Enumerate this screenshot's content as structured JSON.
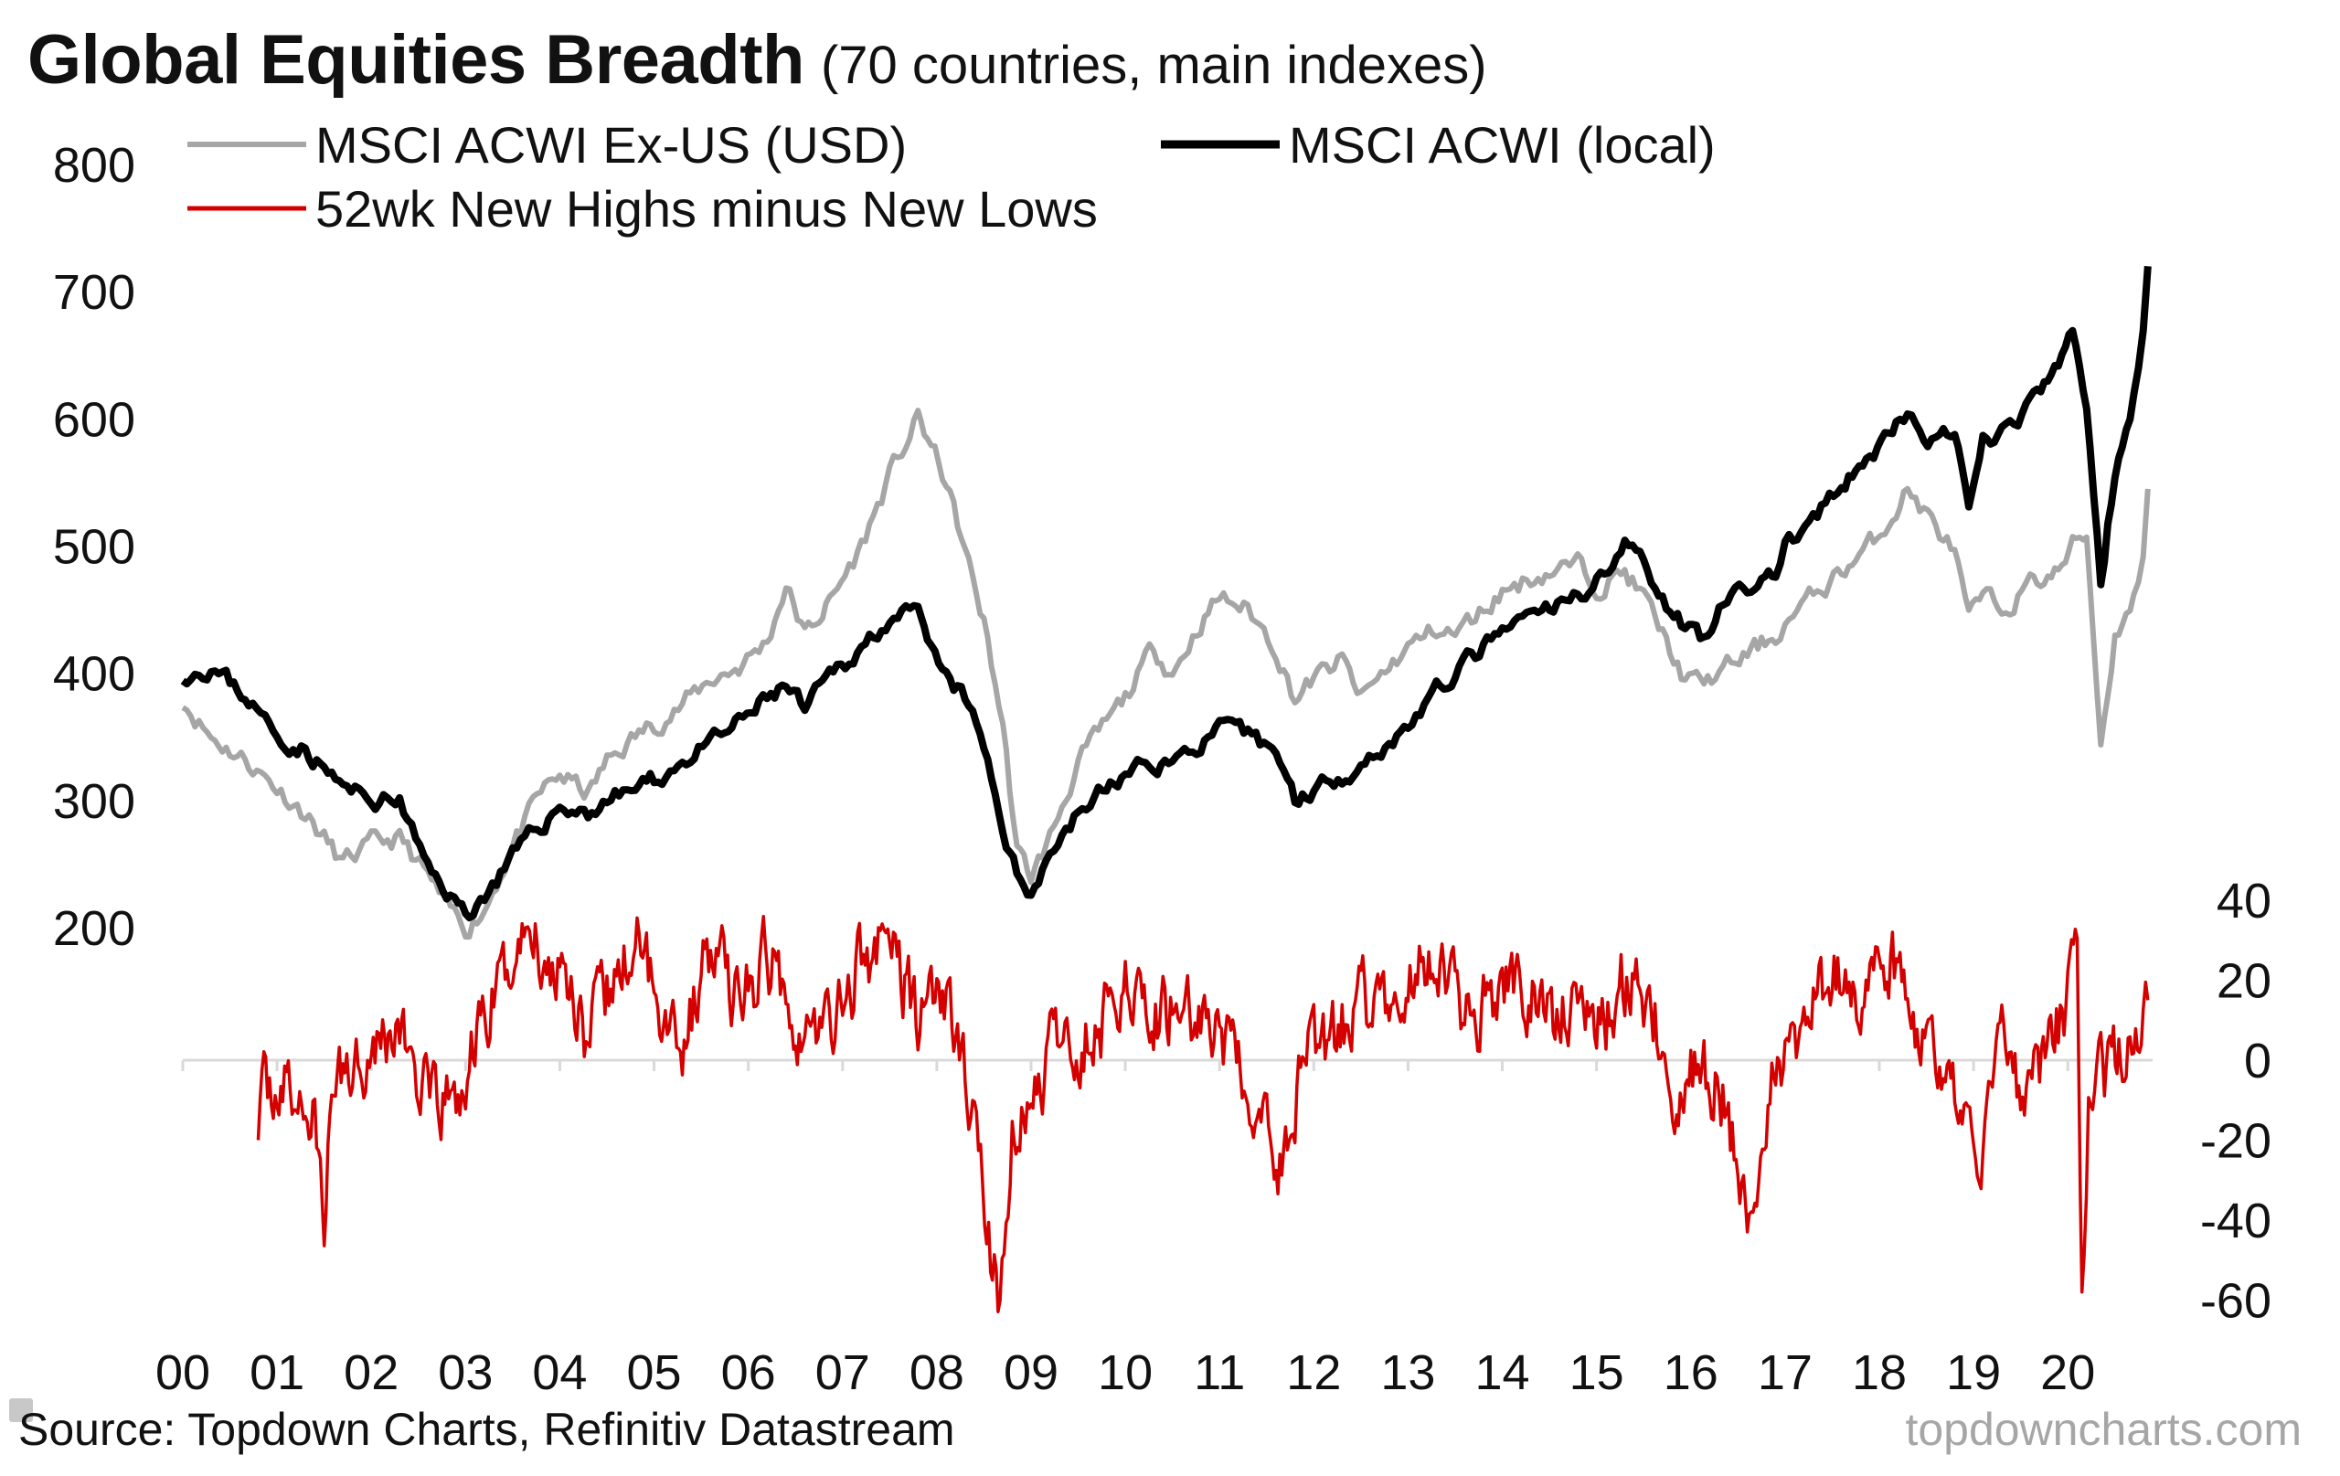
{
  "title": "Global Equities Breadth",
  "subtitle": "(70 countries, main indexes)",
  "source": "Source: Topdown Charts, Refinitiv Datastream",
  "watermark": "topdowncharts.com",
  "colors": {
    "acwi_exus": "#a6a6a6",
    "acwi_local": "#000000",
    "breadth": "#d40000",
    "zero_line": "#d9d9d9"
  },
  "chart_data": {
    "type": "line",
    "title": "Global Equities Breadth",
    "subtitle": "(70 countries, main indexes)",
    "x_tick_labels": [
      "00",
      "01",
      "02",
      "03",
      "04",
      "05",
      "06",
      "07",
      "08",
      "09",
      "10",
      "11",
      "12",
      "13",
      "14",
      "15",
      "16",
      "17",
      "18",
      "19",
      "20"
    ],
    "xlim": [
      2000,
      2020.9
    ],
    "y_left": {
      "ticks": [
        200,
        300,
        400,
        500,
        600,
        700,
        800
      ],
      "lim": [
        100,
        800
      ]
    },
    "y_right": {
      "ticks": [
        40,
        20,
        0,
        -20,
        -40,
        -60
      ],
      "lim": [
        -60,
        260
      ]
    },
    "legend": [
      "MSCI ACWI Ex-US (USD)",
      "MSCI ACWI (local)",
      "52wk New Highs minus New Lows"
    ],
    "series": [
      {
        "name": "MSCI ACWI Ex-US (USD)",
        "axis": "left",
        "color": "#a6a6a6",
        "x": [
          2000.0,
          2000.3,
          2000.7,
          2001.0,
          2001.3,
          2001.7,
          2002.0,
          2002.3,
          2002.6,
          2002.8,
          2003.0,
          2003.2,
          2003.5,
          2003.8,
          2004.0,
          2004.3,
          2004.5,
          2004.8,
          2005.0,
          2005.3,
          2005.6,
          2005.9,
          2006.2,
          2006.4,
          2006.6,
          2006.9,
          2007.2,
          2007.5,
          2007.8,
          2007.9,
          2008.1,
          2008.3,
          2008.5,
          2008.7,
          2008.85,
          2009.0,
          2009.2,
          2009.5,
          2009.8,
          2010.0,
          2010.3,
          2010.5,
          2010.8,
          2011.0,
          2011.3,
          2011.6,
          2011.8,
          2012.0,
          2012.3,
          2012.5,
          2012.8,
          2013.0,
          2013.3,
          2013.5,
          2013.8,
          2014.0,
          2014.3,
          2014.5,
          2014.8,
          2015.0,
          2015.3,
          2015.5,
          2015.7,
          2015.9,
          2016.1,
          2016.3,
          2016.6,
          2016.9,
          2017.0,
          2017.3,
          2017.6,
          2017.9,
          2018.1,
          2018.3,
          2018.6,
          2018.8,
          2018.95,
          2019.1,
          2019.3,
          2019.6,
          2019.9,
          2020.05,
          2020.2,
          2020.35,
          2020.5,
          2020.7,
          2020.8,
          2020.85
        ],
        "y": [
          380,
          350,
          330,
          310,
          290,
          250,
          265,
          270,
          240,
          215,
          200,
          215,
          265,
          305,
          320,
          305,
          330,
          350,
          360,
          375,
          395,
          405,
          425,
          470,
          430,
          460,
          500,
          555,
          600,
          585,
          550,
          495,
          440,
          360,
          260,
          240,
          270,
          330,
          360,
          380,
          420,
          400,
          440,
          460,
          450,
          420,
          380,
          395,
          410,
          380,
          405,
          420,
          435,
          430,
          450,
          465,
          475,
          480,
          485,
          470,
          480,
          460,
          430,
          400,
          390,
          400,
          415,
          430,
          440,
          460,
          480,
          500,
          520,
          545,
          515,
          495,
          440,
          460,
          450,
          470,
          480,
          500,
          510,
          345,
          430,
          460,
          490,
          545
        ]
      },
      {
        "name": "MSCI ACWI (local)",
        "axis": "left",
        "color": "#000000",
        "x": [
          2000.0,
          2000.3,
          2000.7,
          2001.0,
          2001.3,
          2001.7,
          2002.0,
          2002.3,
          2002.6,
          2002.8,
          2003.0,
          2003.2,
          2003.5,
          2003.8,
          2004.0,
          2004.3,
          2004.5,
          2004.8,
          2005.0,
          2005.3,
          2005.6,
          2005.9,
          2006.2,
          2006.4,
          2006.6,
          2006.9,
          2007.2,
          2007.5,
          2007.8,
          2007.9,
          2008.1,
          2008.3,
          2008.5,
          2008.7,
          2008.85,
          2009.0,
          2009.2,
          2009.5,
          2009.8,
          2010.0,
          2010.3,
          2010.5,
          2010.8,
          2011.0,
          2011.3,
          2011.6,
          2011.8,
          2012.0,
          2012.3,
          2012.5,
          2012.8,
          2013.0,
          2013.3,
          2013.5,
          2013.8,
          2014.0,
          2014.3,
          2014.5,
          2014.8,
          2015.0,
          2015.3,
          2015.5,
          2015.7,
          2015.9,
          2016.1,
          2016.3,
          2016.6,
          2016.9,
          2017.0,
          2017.3,
          2017.6,
          2017.9,
          2018.1,
          2018.3,
          2018.6,
          2018.8,
          2018.95,
          2019.1,
          2019.3,
          2019.6,
          2019.9,
          2020.05,
          2020.2,
          2020.35,
          2020.5,
          2020.7,
          2020.8,
          2020.85
        ],
        "y": [
          400,
          405,
          380,
          350,
          340,
          310,
          300,
          300,
          245,
          230,
          210,
          225,
          255,
          280,
          295,
          290,
          300,
          310,
          315,
          330,
          345,
          360,
          380,
          390,
          370,
          400,
          420,
          445,
          445,
          420,
          395,
          380,
          340,
          280,
          240,
          230,
          260,
          290,
          310,
          320,
          330,
          330,
          345,
          355,
          350,
          340,
          300,
          310,
          320,
          330,
          345,
          360,
          385,
          400,
          420,
          430,
          445,
          450,
          460,
          475,
          500,
          490,
          460,
          440,
          430,
          450,
          465,
          480,
          500,
          520,
          545,
          570,
          590,
          600,
          580,
          590,
          525,
          580,
          590,
          610,
          640,
          670,
          610,
          470,
          560,
          620,
          670,
          720
        ]
      },
      {
        "name": "52wk New Highs minus New Lows",
        "axis": "right",
        "color": "#d40000",
        "x": [
          2000.8,
          2001.0,
          2001.2,
          2001.4,
          2001.5,
          2001.6,
          2001.8,
          2002.0,
          2002.3,
          2002.5,
          2002.7,
          2002.8,
          2003.0,
          2003.1,
          2003.3,
          2003.5,
          2003.7,
          2003.9,
          2004.0,
          2004.3,
          2004.5,
          2004.8,
          2005.0,
          2005.3,
          2005.6,
          2005.9,
          2006.2,
          2006.4,
          2006.6,
          2006.9,
          2007.2,
          2007.5,
          2007.8,
          2008.0,
          2008.2,
          2008.4,
          2008.55,
          2008.65,
          2008.8,
          2009.0,
          2009.2,
          2009.5,
          2009.8,
          2010.0,
          2010.3,
          2010.6,
          2010.9,
          2011.2,
          2011.5,
          2011.6,
          2011.7,
          2011.9,
          2012.2,
          2012.5,
          2012.8,
          2013.0,
          2013.3,
          2013.6,
          2013.9,
          2014.2,
          2014.5,
          2014.8,
          2015.1,
          2015.4,
          2015.7,
          2015.85,
          2016.0,
          2016.3,
          2016.6,
          2016.9,
          2017.2,
          2017.5,
          2017.8,
          2018.1,
          2018.4,
          2018.7,
          2018.9,
          2019.1,
          2019.3,
          2019.6,
          2019.8,
          2020.0,
          2020.1,
          2020.15,
          2020.22,
          2020.35,
          2020.6,
          2020.8,
          2020.85
        ],
        "y": [
          -12,
          -5,
          -10,
          -15,
          -40,
          -5,
          0,
          5,
          8,
          -5,
          -15,
          -10,
          -10,
          5,
          15,
          25,
          35,
          20,
          30,
          5,
          15,
          30,
          20,
          5,
          28,
          15,
          25,
          20,
          5,
          10,
          25,
          30,
          10,
          20,
          5,
          -15,
          -45,
          -60,
          -20,
          -10,
          0,
          5,
          10,
          25,
          10,
          15,
          10,
          -5,
          -15,
          -35,
          -20,
          0,
          5,
          15,
          10,
          20,
          25,
          10,
          15,
          20,
          10,
          15,
          10,
          25,
          5,
          -10,
          -5,
          -5,
          -35,
          0,
          10,
          20,
          15,
          25,
          10,
          -10,
          -15,
          -20,
          0,
          -10,
          5,
          15,
          25,
          -60,
          -10,
          -5,
          0,
          5,
          15
        ]
      }
    ]
  }
}
